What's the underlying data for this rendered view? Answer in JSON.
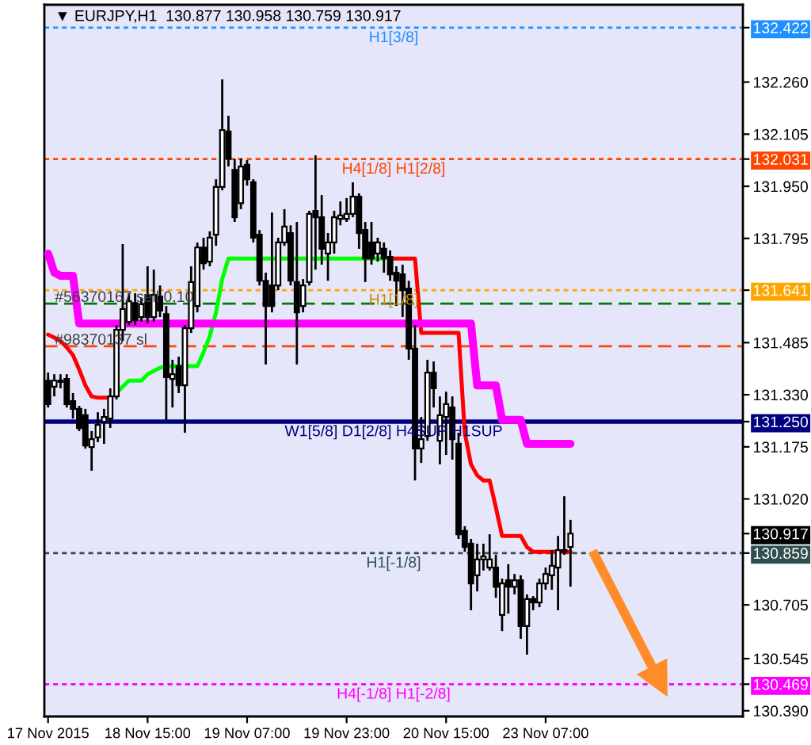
{
  "chart_data": {
    "type": "candlestick",
    "title": "▼ EURJPY,H1  130.877 130.958 130.759 130.917",
    "categories": [
      "17 Nov 2015",
      null,
      null,
      null,
      null,
      null,
      null,
      null,
      null,
      null,
      null,
      null,
      null,
      null,
      null,
      null,
      "18 Nov 15:00",
      null,
      null,
      null,
      null,
      null,
      null,
      null,
      null,
      null,
      null,
      null,
      null,
      null,
      null,
      null,
      "19 Nov 07:00",
      null,
      null,
      null,
      null,
      null,
      null,
      null,
      null,
      null,
      null,
      null,
      null,
      null,
      null,
      null,
      "19 Nov 23:00",
      null,
      null,
      null,
      null,
      null,
      null,
      null,
      null,
      null,
      null,
      null,
      null,
      null,
      null,
      null,
      "20 Nov 15:00",
      null,
      null,
      null,
      null,
      null,
      null,
      null,
      null,
      null,
      null,
      null,
      null,
      null,
      null,
      null,
      "23 Nov 07:00",
      null,
      null,
      null,
      null
    ],
    "ohlc": [
      [
        131.372,
        131.396,
        131.292,
        131.302
      ],
      [
        131.354,
        131.391,
        131.325,
        131.372
      ],
      [
        131.368,
        131.391,
        131.349,
        131.372
      ],
      [
        131.377,
        131.391,
        131.292,
        131.302
      ],
      [
        131.311,
        131.335,
        131.259,
        131.288
      ],
      [
        131.288,
        131.297,
        131.222,
        131.231
      ],
      [
        131.269,
        131.288,
        131.17,
        131.179
      ],
      [
        131.174,
        131.222,
        131.104,
        131.198
      ],
      [
        131.203,
        131.278,
        131.189,
        131.24
      ],
      [
        131.25,
        131.288,
        131.184,
        131.264
      ],
      [
        131.259,
        131.349,
        131.231,
        131.325
      ],
      [
        131.325,
        131.537,
        131.316,
        131.523
      ],
      [
        131.523,
        131.778,
        131.49,
        131.585
      ],
      [
        131.547,
        131.632,
        131.537,
        131.608
      ],
      [
        131.603,
        131.632,
        131.537,
        131.552
      ],
      [
        131.561,
        131.618,
        131.547,
        131.599
      ],
      [
        131.627,
        131.712,
        131.542,
        131.561
      ],
      [
        131.561,
        131.702,
        131.547,
        131.627
      ],
      [
        131.622,
        131.655,
        131.561,
        131.58
      ],
      [
        131.57,
        131.594,
        131.255,
        131.382
      ],
      [
        131.377,
        131.434,
        131.292,
        131.391
      ],
      [
        131.415,
        131.443,
        131.335,
        131.358
      ],
      [
        131.358,
        131.537,
        131.217,
        131.528
      ],
      [
        131.528,
        131.712,
        131.514,
        131.665
      ],
      [
        131.594,
        131.783,
        131.575,
        131.768
      ],
      [
        131.768,
        131.797,
        131.702,
        131.721
      ],
      [
        131.726,
        131.816,
        131.712,
        131.797
      ],
      [
        131.806,
        131.971,
        131.773,
        131.948
      ],
      [
        131.948,
        132.268,
        131.938,
        132.117
      ],
      [
        132.113,
        132.16,
        132.009,
        132.032
      ],
      [
        131.999,
        132.032,
        131.844,
        131.858
      ],
      [
        131.9,
        132.032,
        131.882,
        132.009
      ],
      [
        132.014,
        132.028,
        131.952,
        131.971
      ],
      [
        131.962,
        131.971,
        131.783,
        131.797
      ],
      [
        131.806,
        131.82,
        131.655,
        131.669
      ],
      [
        131.669,
        131.693,
        131.42,
        131.594
      ],
      [
        131.655,
        131.872,
        131.575,
        131.594
      ],
      [
        131.655,
        131.797,
        131.641,
        131.783
      ],
      [
        131.783,
        131.882,
        131.773,
        131.83
      ],
      [
        131.811,
        131.834,
        131.655,
        131.669
      ],
      [
        131.665,
        131.844,
        131.42,
        131.575
      ],
      [
        131.594,
        131.674,
        131.575,
        131.655
      ],
      [
        131.665,
        131.877,
        131.655,
        131.868
      ],
      [
        131.877,
        132.042,
        131.702,
        131.858
      ],
      [
        131.858,
        131.924,
        131.717,
        131.764
      ],
      [
        131.75,
        131.811,
        131.669,
        131.783
      ],
      [
        131.783,
        131.877,
        131.75,
        131.858
      ],
      [
        131.853,
        131.905,
        131.834,
        131.863
      ],
      [
        131.853,
        131.915,
        131.844,
        131.868
      ],
      [
        131.868,
        131.962,
        131.858,
        131.919
      ],
      [
        131.919,
        131.929,
        131.764,
        131.811
      ],
      [
        131.82,
        131.844,
        131.665,
        131.735
      ],
      [
        131.783,
        131.844,
        131.717,
        131.735
      ],
      [
        131.75,
        131.797,
        131.726,
        131.783
      ],
      [
        131.764,
        131.783,
        131.693,
        131.735
      ],
      [
        131.74,
        131.759,
        131.669,
        131.688
      ],
      [
        131.693,
        131.712,
        131.594,
        131.669
      ],
      [
        131.688,
        131.717,
        131.561,
        131.641
      ],
      [
        131.646,
        131.669,
        131.434,
        131.467
      ],
      [
        131.467,
        131.537,
        131.075,
        131.17
      ],
      [
        131.17,
        131.264,
        131.127,
        131.198
      ],
      [
        131.207,
        131.434,
        131.193,
        131.396
      ],
      [
        131.396,
        131.429,
        131.292,
        131.349
      ],
      [
        131.193,
        131.325,
        131.123,
        131.269
      ],
      [
        131.264,
        131.339,
        131.151,
        131.302
      ],
      [
        131.292,
        131.325,
        131.137,
        131.198
      ],
      [
        131.184,
        131.217,
        130.901,
        130.915
      ],
      [
        130.925,
        130.939,
        130.863,
        130.877
      ],
      [
        130.887,
        130.901,
        130.689,
        130.769
      ],
      [
        130.793,
        130.887,
        130.745,
        130.84
      ],
      [
        130.84,
        130.887,
        130.807,
        130.849
      ],
      [
        130.816,
        130.915,
        130.807,
        130.84
      ],
      [
        130.816,
        130.854,
        130.726,
        130.759
      ],
      [
        130.675,
        130.783,
        130.627,
        130.769
      ],
      [
        130.778,
        130.826,
        130.679,
        130.759
      ],
      [
        130.759,
        130.797,
        130.736,
        130.778
      ],
      [
        130.778,
        130.793,
        130.604,
        130.642
      ],
      [
        130.642,
        130.736,
        130.557,
        130.722
      ],
      [
        130.722,
        130.731,
        130.689,
        130.712
      ],
      [
        130.712,
        130.783,
        130.698,
        130.769
      ],
      [
        130.769,
        130.816,
        130.75,
        130.797
      ],
      [
        130.793,
        130.868,
        130.75,
        130.821
      ],
      [
        130.816,
        130.91,
        130.689,
        130.868
      ],
      [
        130.868,
        131.028,
        130.854,
        130.863
      ],
      [
        130.877,
        130.958,
        130.759,
        130.917
      ]
    ],
    "series": [
      {
        "type": "line",
        "color": "#ff0000",
        "values": [
          131.509,
          131.5,
          131.49,
          131.471,
          131.448,
          131.405,
          131.358,
          131.325,
          131.321,
          131.321,
          131.321,
          null,
          null,
          null,
          null,
          null,
          null,
          null,
          null,
          null,
          null,
          null,
          null,
          null,
          null,
          null,
          null,
          null,
          null,
          null,
          null,
          null,
          null,
          null,
          null,
          null,
          null,
          null,
          null,
          null,
          null,
          null,
          null,
          null,
          null,
          null,
          null,
          null,
          null,
          null,
          null,
          null,
          null,
          null,
          null,
          131.735,
          131.735,
          131.735,
          131.735,
          131.735,
          131.514,
          131.514,
          131.514,
          131.514,
          131.514,
          131.514,
          131.514,
          131.217,
          131.123,
          131.09,
          131.075,
          131.075,
          130.995,
          130.91,
          130.91,
          130.91,
          130.91,
          130.877,
          130.863,
          130.863,
          130.863,
          130.863,
          130.863,
          130.863,
          130.863
        ]
      },
      {
        "type": "line",
        "color": "#00ff00",
        "values": [
          null,
          null,
          null,
          null,
          null,
          null,
          null,
          null,
          null,
          null,
          null,
          131.335,
          131.354,
          131.372,
          131.372,
          131.372,
          131.391,
          131.401,
          131.41,
          131.415,
          131.415,
          131.415,
          131.415,
          131.415,
          131.415,
          131.457,
          131.504,
          131.575,
          131.674,
          131.735,
          131.735,
          131.735,
          131.735,
          131.735,
          131.735,
          131.735,
          131.735,
          131.735,
          131.735,
          131.735,
          131.735,
          131.735,
          131.735,
          131.735,
          131.735,
          131.735,
          131.735,
          131.735,
          131.735,
          131.735,
          131.735,
          131.735,
          131.735,
          131.735,
          131.735,
          null,
          null,
          null,
          null,
          null,
          null,
          null,
          null,
          null,
          null,
          null,
          null,
          null,
          null,
          null,
          null,
          null,
          null,
          null,
          null,
          null,
          null,
          null,
          null,
          null,
          null,
          null,
          null,
          null,
          null
        ]
      },
      {
        "type": "line",
        "color": "#ff00ff",
        "values": [
          131.75,
          131.693,
          131.684,
          131.684,
          131.684,
          131.542,
          131.542,
          131.542,
          131.542,
          131.542,
          131.542,
          131.542,
          131.542,
          131.542,
          131.542,
          131.542,
          131.542,
          131.542,
          131.542,
          131.542,
          131.542,
          131.542,
          131.542,
          131.542,
          131.542,
          131.542,
          131.542,
          131.542,
          131.542,
          131.542,
          131.542,
          131.542,
          131.542,
          131.542,
          131.542,
          131.542,
          131.542,
          131.542,
          131.542,
          131.542,
          131.542,
          131.542,
          131.542,
          131.542,
          131.542,
          131.542,
          131.542,
          131.542,
          131.542,
          131.542,
          131.542,
          131.542,
          131.542,
          131.542,
          131.542,
          131.542,
          131.542,
          131.542,
          131.542,
          131.542,
          131.542,
          131.542,
          131.542,
          131.542,
          131.542,
          131.542,
          131.542,
          131.542,
          131.542,
          131.358,
          131.358,
          131.358,
          131.358,
          131.255,
          131.255,
          131.255,
          131.255,
          131.184,
          131.184,
          131.184,
          131.184,
          131.184,
          131.184,
          131.184,
          131.184
        ]
      }
    ],
    "ylim": [
      130.373,
      132.49
    ],
    "yticks": [
      {
        "value": 132.26,
        "label": "132.260"
      },
      132.105,
      {
        "value": 131.95,
        "label": "131.950"
      },
      131.795,
      131.485,
      {
        "value": 131.33,
        "label": "131.330"
      },
      131.175,
      {
        "value": 131.02,
        "label": "131.020"
      },
      130.705,
      130.545,
      {
        "value": 130.39,
        "label": "130.390"
      },
      132.422,
      132.031,
      131.641,
      {
        "value": 131.25,
        "label": "131.250"
      },
      130.917,
      130.859,
      130.469
    ],
    "ref_lines": [
      {
        "axis": "y",
        "value": 132.422,
        "label": "H1[3/8]",
        "color": "#1e90ff",
        "line_style": "dotted"
      },
      {
        "axis": "y",
        "value": 132.031,
        "label": "H4[1/8] H1[2/8]",
        "color": "#ff4500",
        "line_style": "dotted"
      },
      {
        "axis": "y",
        "value": 131.641,
        "label": "H1[1/8]",
        "color": "#ffa500",
        "line_style": "dotted"
      },
      {
        "axis": "y",
        "value": 131.601,
        "color": "#007a00",
        "line_style": "dashed"
      },
      {
        "axis": "y",
        "value": 131.474,
        "color": "#ff4500",
        "line_style": "dashed"
      },
      {
        "axis": "y",
        "value": 131.25,
        "label": "W1[5/8] D1[2/8] H4SUP H1SUP",
        "color": "#000080",
        "line_style": "solid"
      },
      {
        "axis": "y",
        "value": 130.859,
        "label": "H1[-1/8]",
        "color": "#2f4f4f",
        "line_style": "dotted"
      },
      {
        "axis": "y",
        "value": 130.469,
        "label": "H4[-1/8] H1[-2/8]",
        "color": "#ff00ff",
        "line_style": "dotted"
      }
    ],
    "annotations": [
      {
        "text": "#56370167 sell 0.10",
        "y": 131.601
      },
      {
        "text": "#98370137 sl",
        "y": 131.474
      }
    ]
  }
}
